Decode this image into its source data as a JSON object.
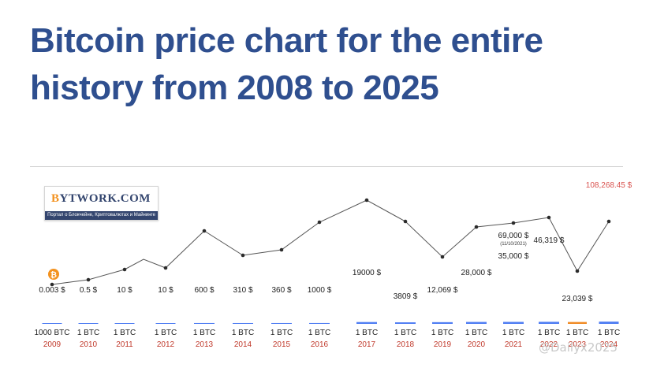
{
  "title": "Bitcoin price chart for the entire history from 2008 to 2025",
  "logo": {
    "name_b": "B",
    "name_rest": "YTWORK.COM",
    "tagline": "Портал о Блокчейне, Криптовалютах и Майнинге"
  },
  "watermark": "@Dailyx2025",
  "colors": {
    "title": "#2f4f8f",
    "bar": "#4f7df3",
    "bar_highlight": "#f08a24",
    "year": "#c0392b",
    "line": "#555555",
    "bitcoin_orange": "#f3921f"
  },
  "chart_data": {
    "type": "bar",
    "categories": [
      "2009",
      "2010",
      "2011",
      "2012",
      "2013",
      "2014",
      "2015",
      "2016",
      "2017",
      "2018",
      "2019",
      "2020",
      "2021",
      "2022",
      "2023",
      "2024"
    ],
    "values": [
      0.003,
      0.5,
      10,
      10,
      600,
      310,
      360,
      1000,
      19000,
      3809,
      12069,
      28000,
      35000,
      46319,
      23039,
      108268.45
    ],
    "price_labels": [
      "0.003 $",
      "0.5 $",
      "10 $",
      "10 $",
      "600 $",
      "310 $",
      "360 $",
      "1000 $",
      "19000 $",
      "3809 $",
      "12,069 $",
      "28,000 $",
      "35,000 $",
      "46,319 $",
      "23,039 $",
      "108,268.45 $"
    ],
    "unit_labels": [
      "1000 BTC",
      "1 BTC",
      "1 BTC",
      "1 BTC",
      "1 BTC",
      "1 BTC",
      "1 BTC",
      "1 BTC",
      "1 BTC",
      "1 BTC",
      "1 BTC",
      "1 BTC",
      "1 BTC",
      "1 BTC",
      "1 BTC",
      "1 BTC"
    ],
    "highlight_index": 14,
    "annotation": {
      "value": "69,000 $",
      "date": "(11/10/2021)"
    },
    "trend_line": "decorative connecting line between markers above the bars"
  }
}
